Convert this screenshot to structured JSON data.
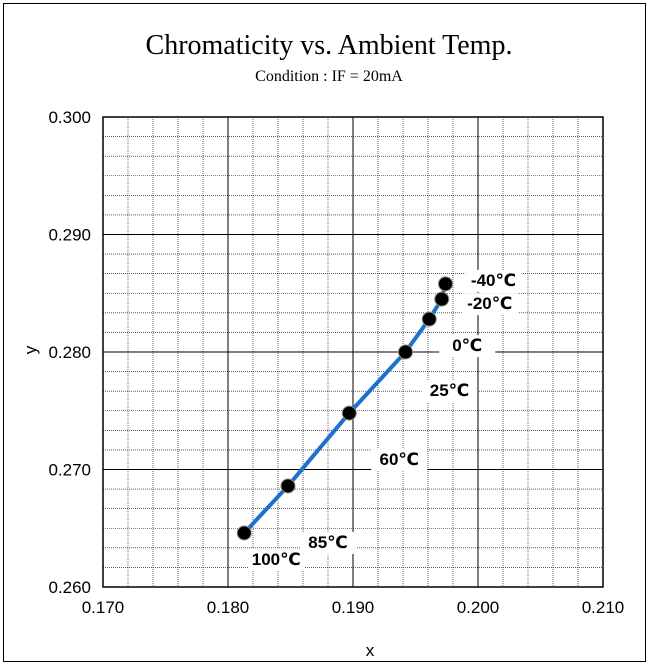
{
  "chart_data": {
    "type": "line",
    "title": "Chromaticity vs. Ambient Temp.",
    "subtitle": "Condition : IF = 20mA",
    "xlabel": "x",
    "ylabel": "y",
    "xlim": [
      0.17,
      0.21
    ],
    "ylim": [
      0.26,
      0.3
    ],
    "x_ticks": [
      "0.170",
      "0.180",
      "0.190",
      "0.200",
      "0.210"
    ],
    "y_ticks": [
      "0.260",
      "0.270",
      "0.280",
      "0.290",
      "0.300"
    ],
    "grid": true,
    "series": [
      {
        "color": "#1f6fcf",
        "points": [
          {
            "label": "-40℃",
            "x": 0.1974,
            "y": 0.2858
          },
          {
            "label": "-20℃",
            "x": 0.1971,
            "y": 0.2845
          },
          {
            "label": "0℃",
            "x": 0.1961,
            "y": 0.2828
          },
          {
            "label": "25℃",
            "x": 0.1942,
            "y": 0.28
          },
          {
            "label": "60℃",
            "x": 0.1897,
            "y": 0.2748
          },
          {
            "label": "85℃",
            "x": 0.1848,
            "y": 0.2686
          },
          {
            "label": "100℃",
            "x": 0.1813,
            "y": 0.2646
          }
        ]
      }
    ]
  }
}
